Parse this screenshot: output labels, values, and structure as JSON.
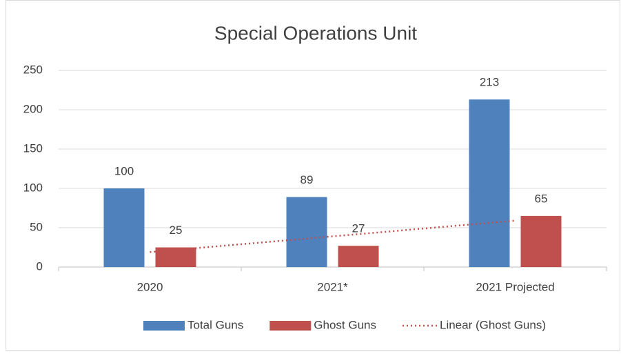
{
  "chart_data": {
    "type": "bar",
    "title": "Special Operations Unit",
    "categories": [
      "2020",
      "2021*",
      "2021 Projected"
    ],
    "series": [
      {
        "name": "Total Guns",
        "color": "#4f81bd",
        "values": [
          100,
          89,
          213
        ]
      },
      {
        "name": "Ghost Guns",
        "color": "#c0504d",
        "values": [
          25,
          27,
          65
        ]
      },
      {
        "name": "Linear (Ghost Guns)",
        "color": "#c0504d",
        "type": "line",
        "dash": "dotted",
        "values": [
          19,
          39,
          59
        ]
      }
    ],
    "ylim": [
      0,
      250
    ],
    "yticks": [
      0,
      50,
      100,
      150,
      200,
      250
    ],
    "grid": true,
    "legend": "bottom"
  }
}
